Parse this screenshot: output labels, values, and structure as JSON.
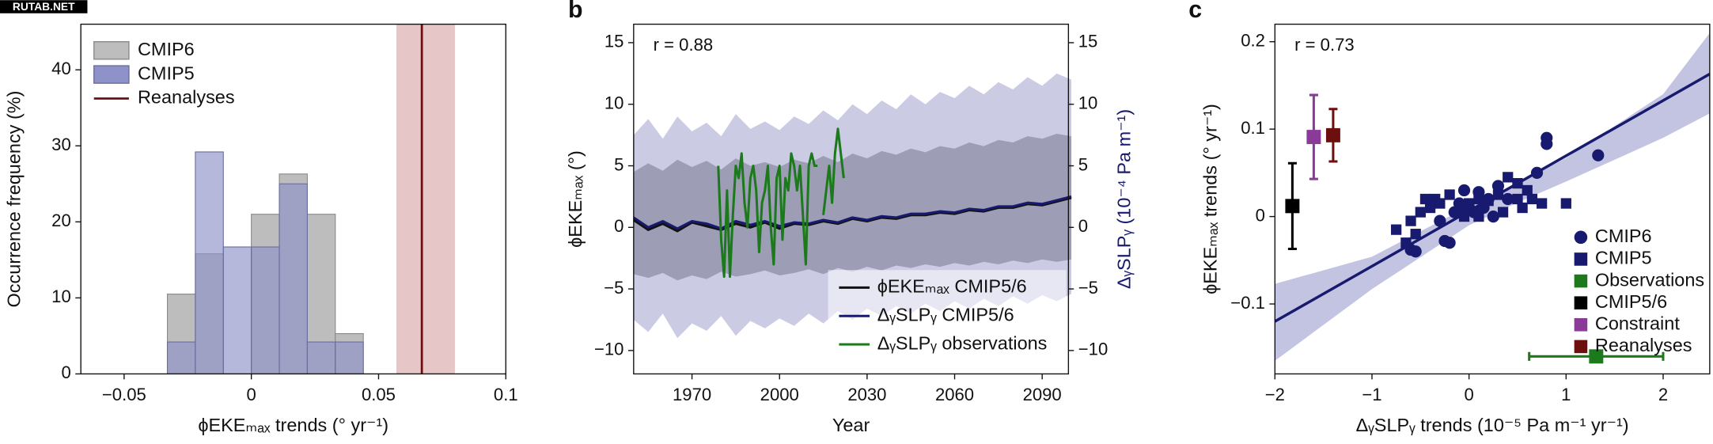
{
  "watermark": "RUTAB.NET",
  "chart_data": [
    {
      "type": "histogram",
      "bins": [
        -0.033,
        -0.022,
        -0.011,
        0,
        0.011,
        0.022,
        0.033,
        0.044
      ],
      "series": [
        {
          "name": "CMIP6",
          "color": "#bdbdbd",
          "values": [
            10.5,
            15.8,
            0,
            21,
            26.3,
            21,
            5.3
          ]
        },
        {
          "name": "CMIP5",
          "color": "#8f92c8",
          "values": [
            4.2,
            29.2,
            16.7,
            16.7,
            25,
            4.2,
            4.2
          ]
        }
      ],
      "reference": {
        "name": "Reanalyses",
        "value": 0.067,
        "range": [
          0.057,
          0.08
        ],
        "color": "#6e0f0f",
        "band_color": "#e6c6c6"
      },
      "xlim": [
        -0.067,
        0.1
      ],
      "ylim": [
        0,
        46
      ],
      "xticks": [
        {
          "value": -0.05,
          "label": "−0.05"
        },
        0,
        0.05,
        0.1
      ],
      "yticks": [
        0,
        10,
        20,
        30,
        40
      ],
      "x_label": "ϕEKEₘₐₓ trends (° yr⁻¹)",
      "y_label": "Occurrence frequency (%)",
      "legend": "upper left"
    },
    {
      "type": "line",
      "panel": "b",
      "annotation": "r = 0.88",
      "x": [
        1950,
        1955,
        1960,
        1965,
        1970,
        1975,
        1980,
        1985,
        1990,
        1995,
        2000,
        2005,
        2010,
        2015,
        2020,
        2025,
        2030,
        2035,
        2040,
        2045,
        2050,
        2055,
        2060,
        2065,
        2070,
        2075,
        2080,
        2085,
        2090,
        2095,
        2100
      ],
      "bands": [
        {
          "color": "#cbcbe4",
          "lower": [
            -7.5,
            -8.5,
            -7.0,
            -9.0,
            -7.8,
            -8.4,
            -7.2,
            -8.8,
            -7.6,
            -8.2,
            -7.4,
            -8.0,
            -7.0,
            -7.8,
            -6.8,
            -7.5,
            -6.6,
            -7.2,
            -6.4,
            -7.0,
            -6.2,
            -6.8,
            -6.0,
            -6.6,
            -5.8,
            -6.4,
            -5.6,
            -6.2,
            -5.5,
            -6.0,
            -5.4
          ],
          "upper": [
            7.5,
            8.8,
            7.2,
            9.0,
            7.8,
            8.5,
            7.4,
            9.2,
            8.0,
            8.6,
            7.9,
            9.0,
            8.4,
            9.5,
            8.7,
            10.0,
            9.2,
            10.3,
            9.6,
            10.8,
            10.0,
            11.0,
            10.5,
            11.5,
            10.8,
            11.8,
            11.2,
            12.2,
            11.5,
            12.5,
            12.0
          ]
        },
        {
          "color": "#9d9db6",
          "lower": [
            -3.8,
            -4.1,
            -3.7,
            -4.3,
            -3.9,
            -4.2,
            -3.6,
            -4.0,
            -3.8,
            -3.5,
            -3.9,
            -3.7,
            -3.4,
            -3.8,
            -3.3,
            -3.6,
            -3.2,
            -3.5,
            -3.1,
            -3.3,
            -3.0,
            -3.2,
            -2.9,
            -3.1,
            -2.8,
            -3.0,
            -2.7,
            -2.9,
            -2.6,
            -2.8,
            -2.6
          ],
          "upper": [
            4.5,
            5.2,
            4.6,
            5.5,
            4.9,
            5.4,
            4.7,
            5.6,
            5.0,
            5.3,
            4.9,
            5.5,
            5.2,
            5.8,
            5.3,
            6.0,
            5.6,
            6.2,
            5.9,
            6.4,
            6.1,
            6.6,
            6.4,
            6.9,
            6.6,
            7.1,
            6.9,
            7.4,
            7.2,
            7.6,
            7.4
          ]
        }
      ],
      "series": [
        {
          "name": "ϕEKEₘₐₓ CMIP5/6",
          "color": "#111111",
          "values": [
            0.6,
            -0.2,
            0.3,
            -0.3,
            0.4,
            0.1,
            -0.2,
            0.3,
            0.0,
            0.4,
            -0.1,
            0.3,
            0.2,
            0.5,
            0.3,
            0.7,
            0.5,
            0.8,
            0.7,
            1.0,
            1.0,
            1.2,
            1.1,
            1.4,
            1.3,
            1.6,
            1.6,
            1.9,
            1.8,
            2.1,
            2.4
          ]
        },
        {
          "name": "ΔᵧSLPᵧ CMIP5/6",
          "color": "#171a6e",
          "axis": "y2",
          "values": [
            0.8,
            0.0,
            0.5,
            -0.1,
            0.5,
            0.3,
            -0.1,
            0.5,
            0.2,
            0.5,
            0.1,
            0.4,
            0.3,
            0.6,
            0.4,
            0.8,
            0.6,
            0.9,
            0.8,
            1.1,
            1.1,
            1.3,
            1.2,
            1.5,
            1.4,
            1.7,
            1.7,
            2.0,
            1.9,
            2.2,
            2.5
          ]
        },
        {
          "name": "ΔᵧSLPᵧ observations",
          "color": "#1c7a1c",
          "axis": "y2",
          "x": [
            1979,
            1980,
            1981,
            1982,
            1983,
            1984,
            1985,
            1986,
            1987,
            1988,
            1989,
            1990,
            1991,
            1992,
            1993,
            1994,
            1995,
            1996,
            1997,
            1998,
            1999,
            2000,
            2001,
            2002,
            2003,
            2004,
            2005,
            2006,
            2007,
            2008,
            2009,
            2010,
            2011,
            2012,
            2013,
            2014,
            2015,
            2016,
            2017,
            2018,
            2019,
            2020,
            2021,
            2022
          ],
          "values": [
            5,
            -1,
            -4,
            3,
            -4,
            1,
            5,
            4,
            6,
            2,
            0,
            4,
            5,
            3,
            -2,
            2,
            3,
            5,
            0,
            -3,
            4,
            5,
            -1,
            4,
            3,
            6,
            5,
            3,
            5,
            1,
            -3,
            5,
            6,
            5,
            5,
            null,
            1,
            3,
            5,
            2,
            6,
            8,
            6,
            4
          ]
        }
      ],
      "xlim": [
        1950,
        2099
      ],
      "ylim": [
        -11.9,
        16.5
      ],
      "y2lim": [
        -11.9,
        16.5
      ],
      "xticks": [
        1970,
        2000,
        2030,
        2060,
        2090
      ],
      "yticks": [
        {
          "value": -10,
          "label": "−10"
        },
        {
          "value": -5,
          "label": "−5"
        },
        0,
        5,
        10,
        15
      ],
      "y2ticks": [
        {
          "value": -10,
          "label": "−10"
        },
        {
          "value": -5,
          "label": "−5"
        },
        0,
        5,
        10,
        15
      ],
      "x_label": "Year",
      "y_label": "ϕEKEₘₐₓ (°)",
      "y2_label": "ΔᵧSLPᵧ (10⁻⁴ Pa m⁻¹)",
      "legend": "lower right"
    },
    {
      "type": "scatter",
      "panel": "c",
      "annotation": "r = 0.73",
      "fit": {
        "color": "#171a6e",
        "band_color": "#c3c4e2",
        "x": [
          -2,
          2.48
        ],
        "y": [
          -0.12,
          0.163
        ],
        "band": {
          "x": [
            -2,
            -1,
            0,
            0.5,
            1,
            2,
            2.48
          ],
          "lower": [
            -0.165,
            -0.083,
            -0.01,
            0.016,
            0.04,
            0.09,
            0.118
          ],
          "upper": [
            -0.077,
            -0.046,
            0.012,
            0.038,
            0.067,
            0.14,
            0.21
          ]
        }
      },
      "series": [
        {
          "name": "CMIP6",
          "color": "#171a6e",
          "marker": "circle",
          "x": [
            0.8,
            0.8,
            1.33,
            0.7,
            0.3,
            -0.05,
            0.1,
            0.2,
            0.4,
            -0.1,
            0,
            -0.15,
            0.05,
            0.15,
            -0.3,
            -0.2,
            -0.25,
            -0.55,
            -0.6,
            0.25
          ],
          "y": [
            0.09,
            0.083,
            0.07,
            0.05,
            0.035,
            0.03,
            0.028,
            0.02,
            0.02,
            0.015,
            0.01,
            0.005,
            0.005,
            0.01,
            -0.005,
            -0.03,
            -0.028,
            -0.04,
            -0.038,
            0
          ]
        },
        {
          "name": "CMIP5",
          "color": "#171a6e",
          "marker": "square",
          "x": [
            -0.75,
            -0.6,
            -0.5,
            -0.4,
            -0.35,
            -0.3,
            -0.2,
            -0.45,
            -0.55,
            -0.1,
            0,
            0.1,
            0.2,
            0.3,
            0.4,
            0.5,
            0.5,
            0.55,
            0.65,
            0.75,
            0.6,
            1,
            0.35,
            -0.65,
            0.1,
            -0.05
          ],
          "y": [
            -0.015,
            -0.005,
            0.005,
            0.01,
            0.02,
            0.015,
            0.025,
            0.02,
            -0.02,
            0.005,
            0.015,
            0.02,
            0.018,
            0.025,
            0.045,
            0.038,
            0.02,
            0.01,
            0.02,
            0.015,
            0.03,
            0.015,
            0.005,
            -0.03,
            0,
            0
          ]
        },
        {
          "name": "Observations",
          "color": "#1c7a1c",
          "marker": "square",
          "x": [
            1.31
          ],
          "y": [
            -0.16
          ],
          "xerr": [
            0.69
          ]
        },
        {
          "name": "CMIP5/6",
          "color": "#000000",
          "marker": "square",
          "x": [
            -1.82
          ],
          "y": [
            0.012
          ],
          "yerr": [
            0.049
          ]
        },
        {
          "name": "Constraint",
          "color": "#8a3b98",
          "marker": "square",
          "x": [
            -1.6
          ],
          "y": [
            0.091
          ],
          "yerr": [
            0.048
          ]
        },
        {
          "name": "Reanalyses",
          "color": "#6e0f0f",
          "marker": "square",
          "x": [
            -1.4
          ],
          "y": [
            0.093
          ],
          "yerr": [
            0.03
          ]
        }
      ],
      "xlim": [
        -2,
        2.48
      ],
      "ylim": [
        -0.18,
        0.22
      ],
      "xticks": [
        {
          "value": -2,
          "label": "−2"
        },
        {
          "value": -1,
          "label": "−1"
        },
        0,
        1,
        2
      ],
      "yticks": [
        {
          "value": -0.1,
          "label": "−0.1"
        },
        0,
        0.1,
        0.2
      ],
      "x_label": "ΔᵧSLPᵧ trends (10⁻⁵ Pa m⁻¹ yr⁻¹)",
      "y_label": "ϕEKEₘₐₓ trends (° yr⁻¹)",
      "legend": "lower right"
    }
  ]
}
